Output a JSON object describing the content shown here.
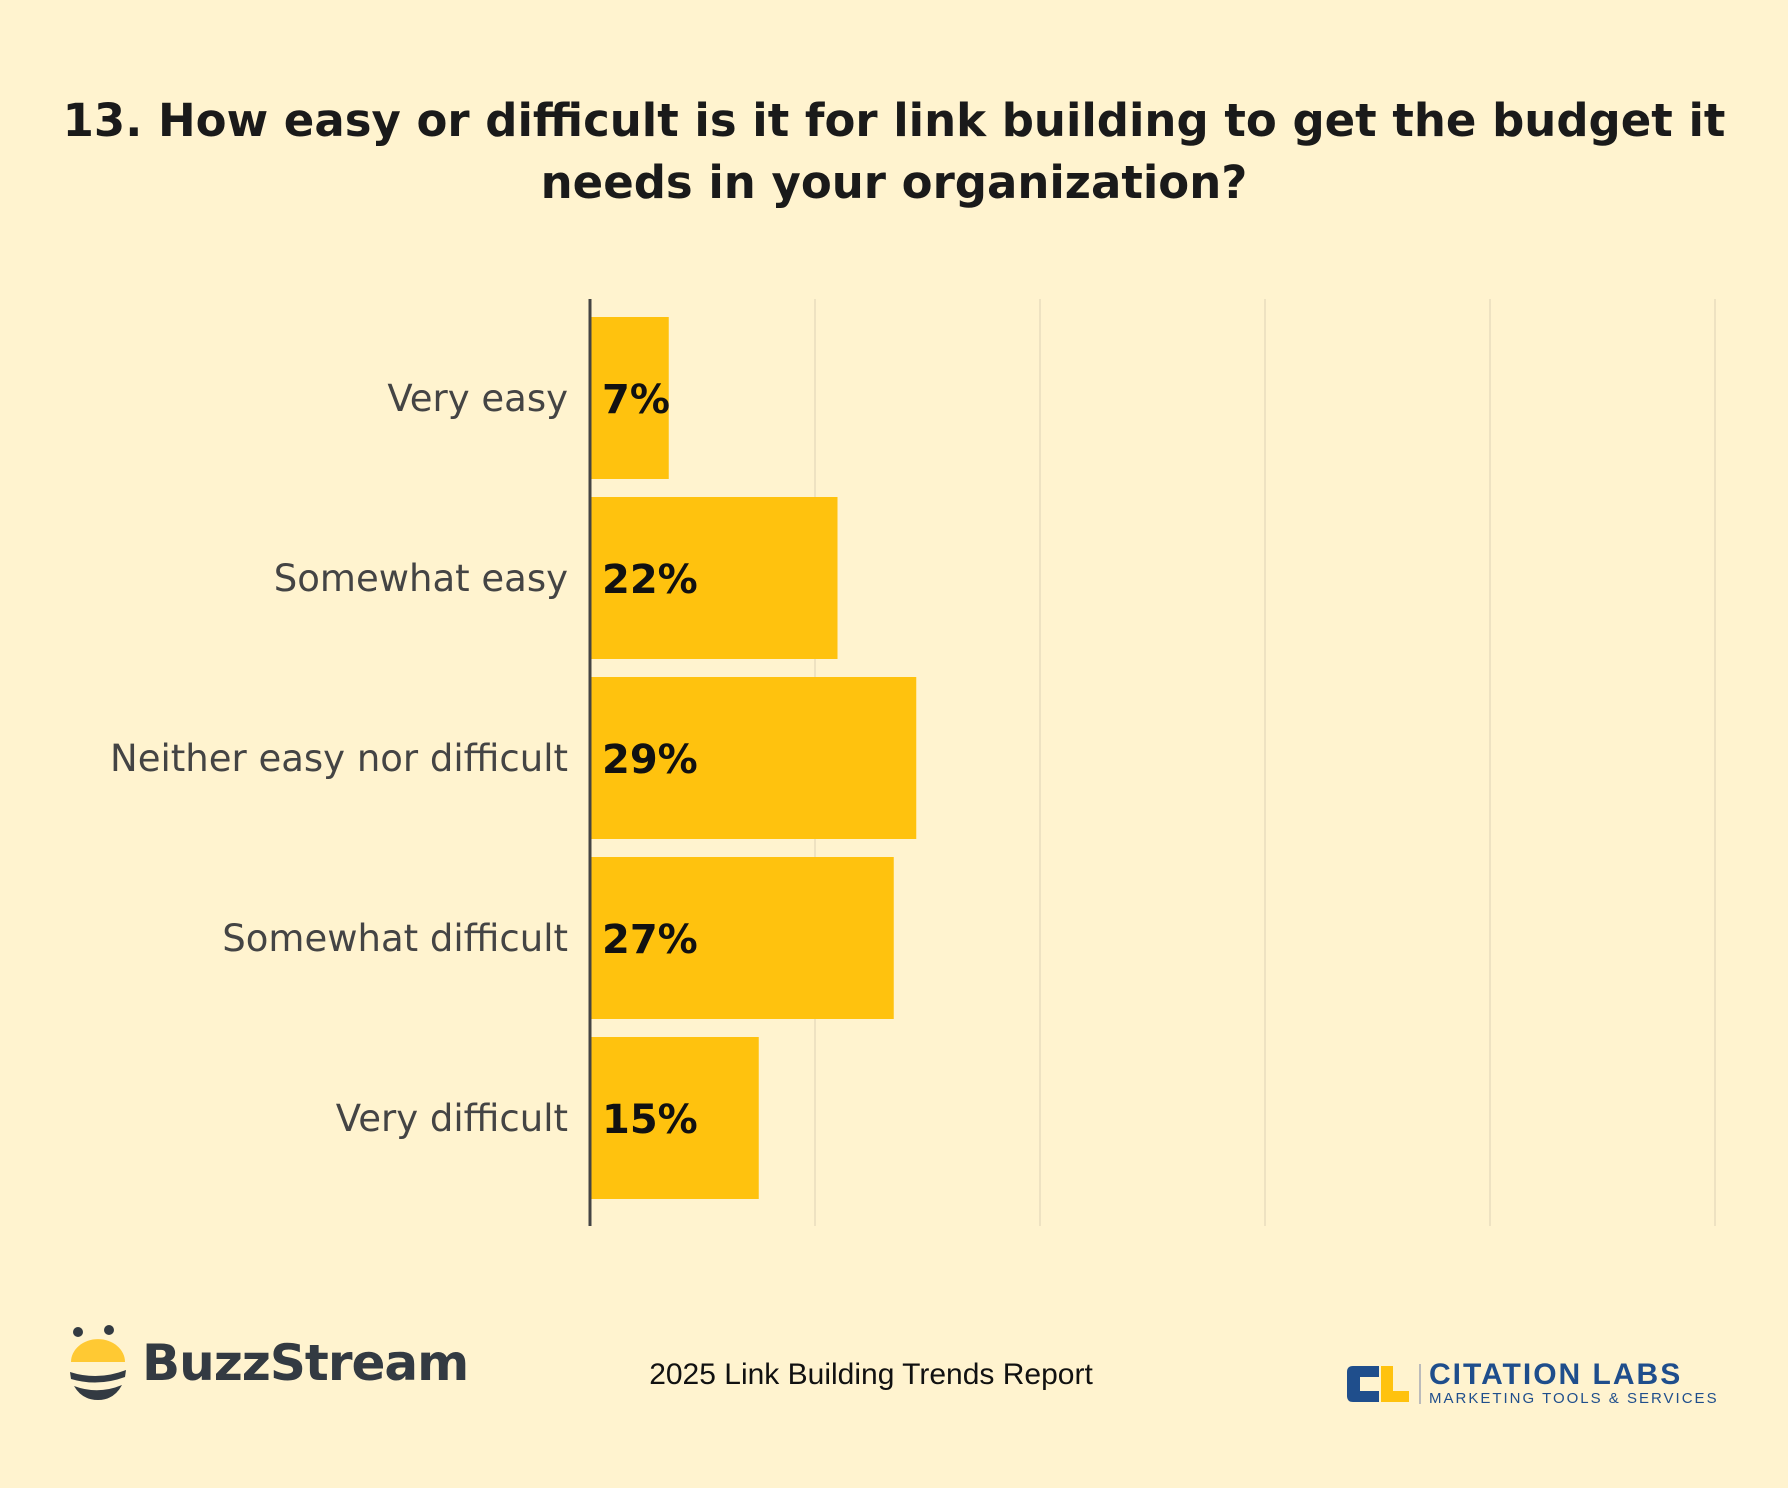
{
  "chart_data": {
    "type": "bar",
    "orientation": "horizontal",
    "title": "13. How easy or difficult is it for link building to get the budget it needs in your organization?",
    "categories": [
      "Very easy",
      "Somewhat easy",
      "Neither easy nor difficult",
      "Somewhat difficult",
      "Very difficult"
    ],
    "values": [
      7,
      22,
      29,
      27,
      15
    ],
    "value_labels": [
      "7%",
      "22%",
      "29%",
      "27%",
      "15%"
    ],
    "xlim": [
      0,
      100
    ],
    "x_gridlines": [
      20,
      40,
      60,
      80,
      100
    ],
    "grid": true,
    "bar_color": "#FFC20E",
    "background_color": "#FFF3CF"
  },
  "footer": {
    "report": "2025 Link Building Trends Report",
    "left_logo": "BuzzStream",
    "right_logo": {
      "name": "CITATION LABS",
      "tagline": "MARKETING TOOLS & SERVICES",
      "mark": "CL"
    }
  }
}
